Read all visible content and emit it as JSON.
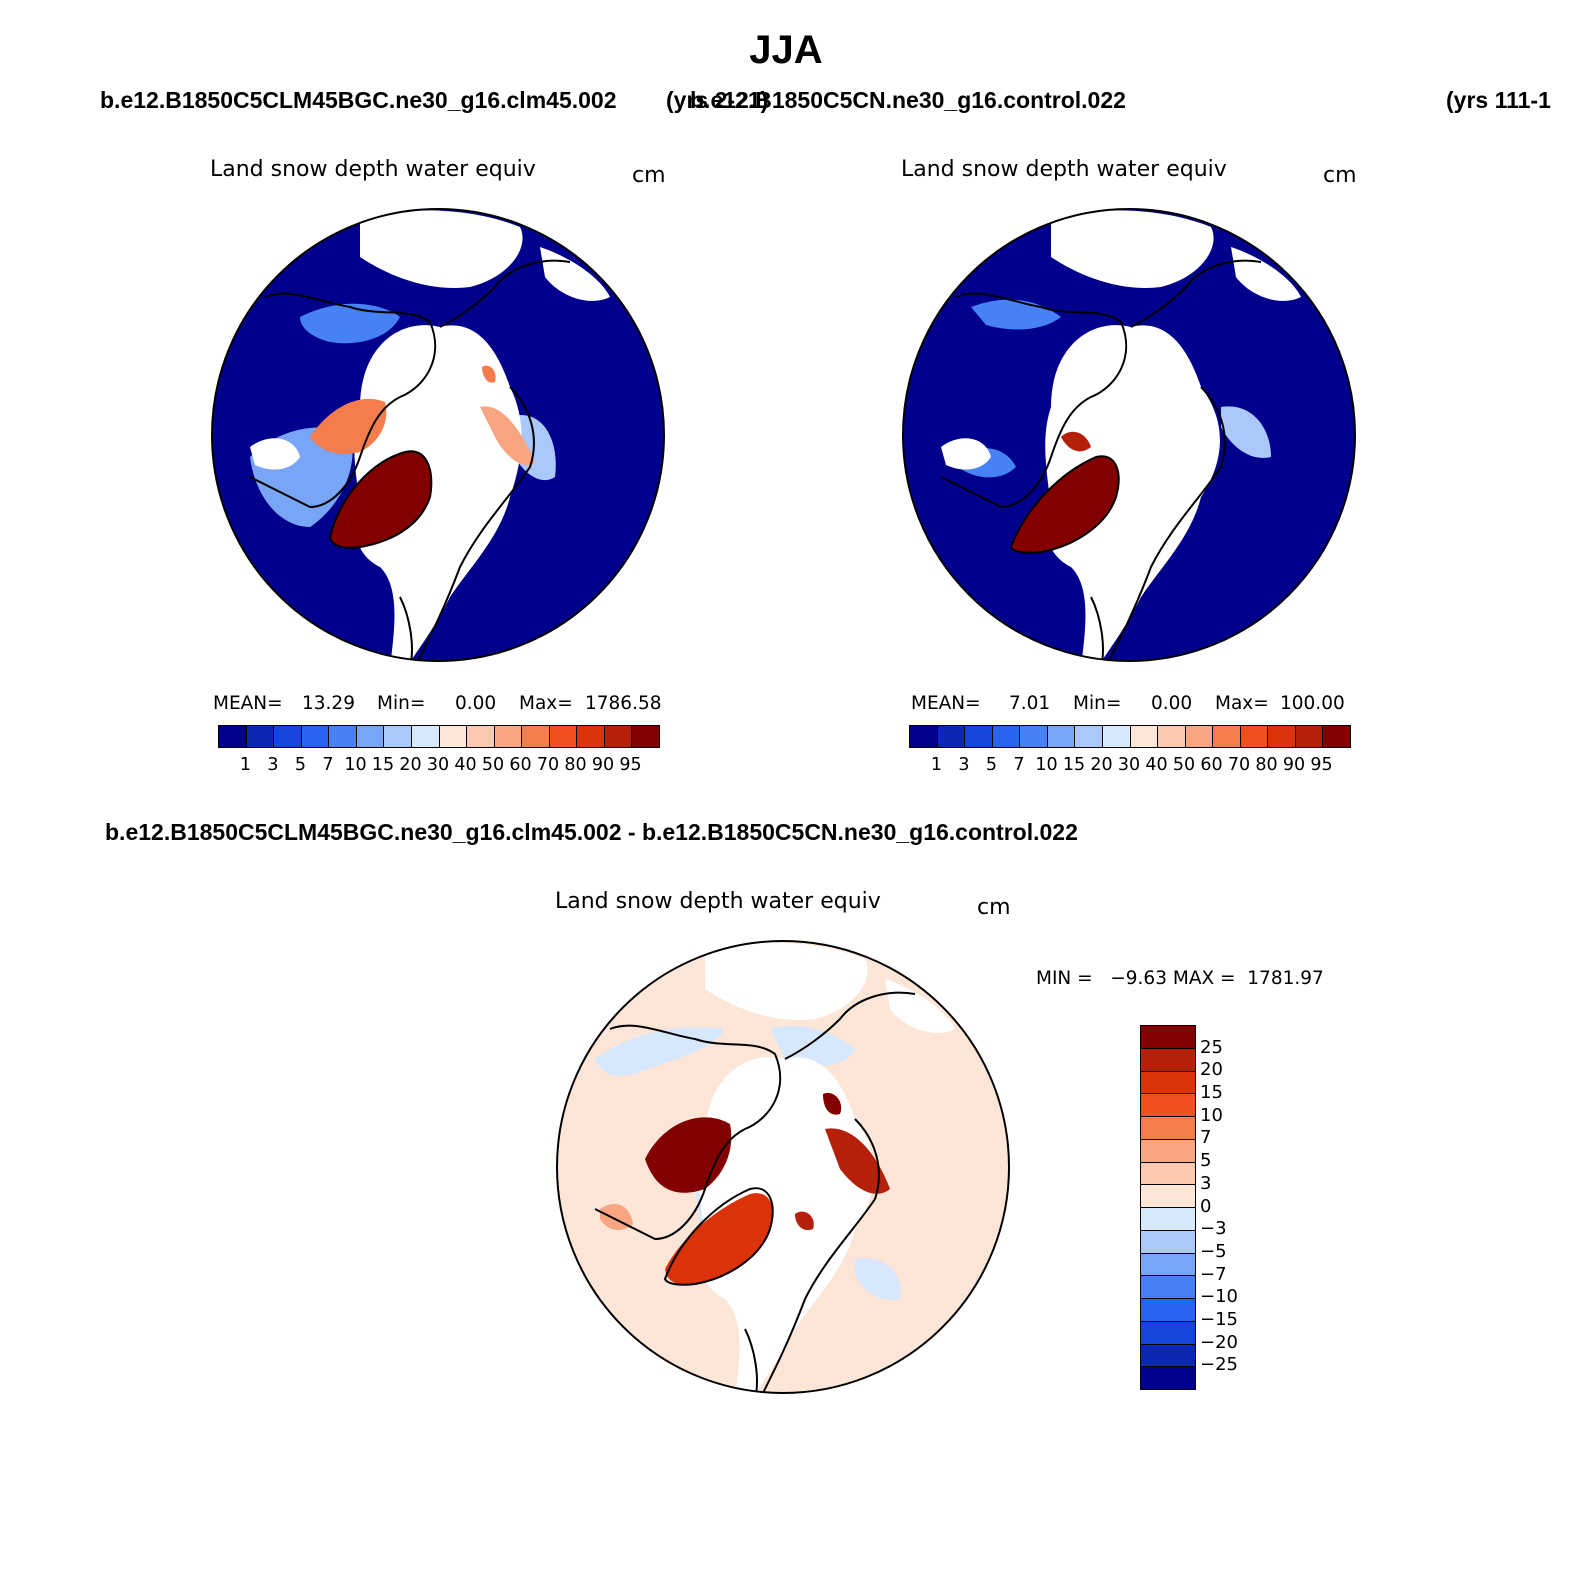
{
  "figure": {
    "season": "JJA",
    "case1": "b.e12.B1850C5CLM45BGC.ne30_g16.clm45.002",
    "case1_years": "(yrs 2-21)",
    "case2": "b.e12.B1850C5CN.ne30_g16.control.022",
    "case2_years": "(yrs 111-1",
    "diff_title": "b.e12.B1850C5CLM45BGC.ne30_g16.clm45.002 - b.e12.B1850C5CN.ne30_g16.control.022"
  },
  "panels": [
    {
      "variable": "Land snow depth water equiv",
      "units": "cm",
      "mean_label": "MEAN=",
      "mean_value": "13.29",
      "min_label": "Min=",
      "min_value": "0.00",
      "max_label": "Max=",
      "max_value": "1786.58"
    },
    {
      "variable": "Land snow depth water equiv",
      "units": "cm",
      "mean_label": "MEAN=",
      "mean_value": "7.01",
      "min_label": "Min=",
      "min_value": "0.00",
      "max_label": "Max=",
      "max_value": "100.00"
    }
  ],
  "diff_panel": {
    "variable": "Land snow depth water equiv",
    "units": "cm",
    "minmax_text": "MIN =   −9.63 MAX =  1781.97"
  },
  "colorbar_abs": {
    "levels": [
      "1",
      "3",
      "5",
      "7",
      "10",
      "15",
      "20",
      "30",
      "40",
      "50",
      "60",
      "70",
      "80",
      "90",
      "95"
    ],
    "colors": [
      "#00008c",
      "#0a28b4",
      "#1446dc",
      "#2864f0",
      "#4682f5",
      "#78a5f5",
      "#aac8fa",
      "#d7e8fc",
      "#fde6d7",
      "#fbc8b0",
      "#f8a582",
      "#f57d4b",
      "#f0501e",
      "#dc320a",
      "#b4200a",
      "#820000"
    ]
  },
  "colorbar_diff": {
    "levels": [
      "25",
      "20",
      "15",
      "10",
      "7",
      "5",
      "3",
      "0",
      "−3",
      "−5",
      "−7",
      "−10",
      "−15",
      "−20",
      "−25"
    ],
    "colors": [
      "#820000",
      "#b4200a",
      "#dc320a",
      "#f0501e",
      "#f57d4b",
      "#f8a582",
      "#fbc8b0",
      "#fde6d7",
      "#d7e8fc",
      "#aac8fa",
      "#78a5f5",
      "#4682f5",
      "#2864f0",
      "#1446dc",
      "#0a28b4",
      "#00008c"
    ]
  }
}
